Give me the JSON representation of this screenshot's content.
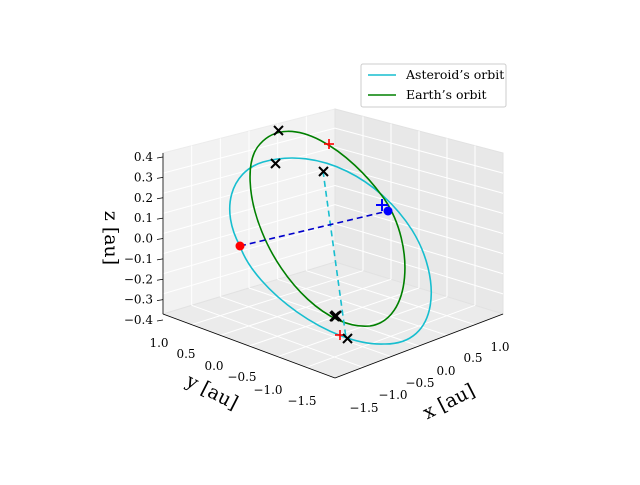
{
  "chart_data": {
    "type": "line3d",
    "title": "",
    "axes": {
      "x": {
        "label": "x [au]",
        "ticks": [
          "−1.5",
          "−1.0",
          "−0.5",
          "0.0",
          "0.5",
          "1.0"
        ]
      },
      "y": {
        "label": "y [au]",
        "ticks": [
          "−1.5",
          "−1.0",
          "−0.5",
          "0.0",
          "0.5",
          "1.0"
        ]
      },
      "z": {
        "label": "z [au]",
        "ticks": [
          "−0.4",
          "−0.3",
          "−0.2",
          "−0.1",
          "0.0",
          "0.1",
          "0.2",
          "0.3",
          "0.4"
        ]
      }
    },
    "view": {
      "elevation_deg": 20,
      "azimuth_deg": -135
    },
    "limits": {
      "x": [
        -1.6,
        1.1
      ],
      "y": [
        -1.6,
        1.1
      ],
      "z": [
        -0.4,
        0.4
      ]
    },
    "grid": true,
    "legend": {
      "placement": "top-right",
      "entries": [
        {
          "label": "Asteroid’s orbit",
          "color": "#17becf"
        },
        {
          "label": "Earth’s orbit",
          "color": "#008000"
        }
      ]
    },
    "series": [
      {
        "name": "Asteroid’s orbit",
        "style": "solid",
        "color": "#17becf",
        "semi_major_au": 1.05,
        "eccentricity": 0.1,
        "inclination_deg": 10,
        "ascending_node_deg": 0
      },
      {
        "name": "Earth’s orbit",
        "style": "solid",
        "color": "#008000",
        "semi_major_au": 1.0,
        "eccentricity": 0.0,
        "inclination_deg": 0
      }
    ],
    "line_of_nodes": {
      "style": "dashed",
      "color": "#17becf",
      "from": [
        -0.3,
        0.9,
        0.35
      ],
      "to": [
        0.3,
        -0.95,
        -0.38
      ]
    },
    "position_link": {
      "style": "dashed",
      "color": "#0000cc",
      "from": [
        -0.05,
        0.95,
        0.0
      ],
      "to": [
        0.95,
        -0.05,
        0.08
      ]
    },
    "markers": [
      {
        "kind": "point",
        "color": "#ff0000",
        "xyz": [
          -0.05,
          0.95,
          0.0
        ]
      },
      {
        "kind": "point",
        "color": "#0000ff",
        "xyz": [
          0.95,
          -0.05,
          0.08
        ]
      },
      {
        "kind": "plus",
        "color": "#0000ff",
        "xyz": [
          0.9,
          -0.05,
          0.1
        ]
      },
      {
        "kind": "plus",
        "color": "#ff0000",
        "xyz": [
          -0.6,
          0.2,
          0.4
        ]
      },
      {
        "kind": "plus",
        "color": "#ff0000",
        "xyz": [
          0.6,
          -0.4,
          -0.4
        ]
      },
      {
        "kind": "cross",
        "color": "#000000",
        "xyz": [
          -0.85,
          0.2,
          0.45
        ]
      },
      {
        "kind": "cross",
        "color": "#000000",
        "xyz": [
          -0.7,
          0.55,
          0.33
        ]
      },
      {
        "kind": "cross",
        "color": "#000000",
        "xyz": [
          -0.2,
          0.2,
          0.32
        ]
      },
      {
        "kind": "cross",
        "color": "#000000",
        "xyz": [
          0.2,
          -0.3,
          -0.34
        ]
      },
      {
        "kind": "cross",
        "color": "#000000",
        "xyz": [
          0.3,
          -0.2,
          -0.31
        ]
      },
      {
        "kind": "cross",
        "color": "#000000",
        "xyz": [
          0.6,
          -0.45,
          -0.4
        ]
      }
    ]
  }
}
